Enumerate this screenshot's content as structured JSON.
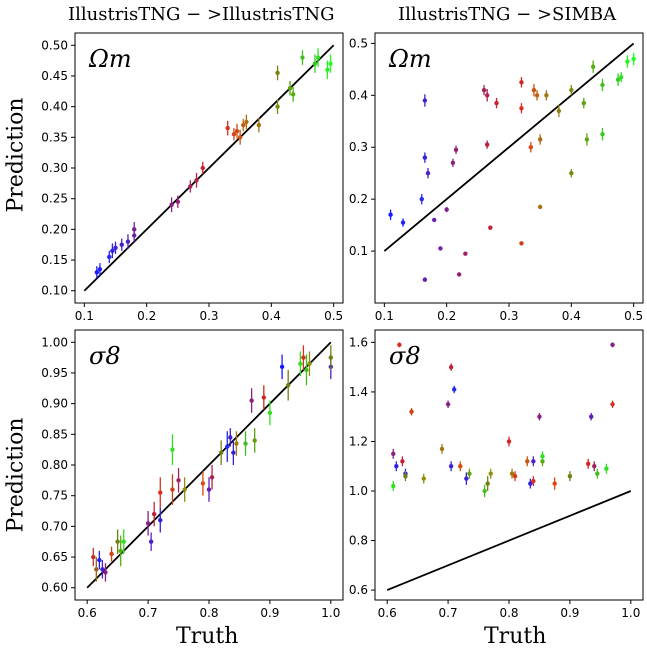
{
  "columns": [
    {
      "title": "IllustrisTNG − >IllustrisTNG"
    },
    {
      "title": "IllustrisTNG − >SIMBA"
    }
  ],
  "row_labels": {
    "ylabel": "Prediction",
    "xlabel": "Truth"
  },
  "chart_data": [
    {
      "type": "scatter",
      "title": "IllustrisTNG − >IllustrisTNG",
      "annotation": "Ωm",
      "ylabel": "Prediction",
      "xlim": [
        0.085,
        0.515
      ],
      "ylim": [
        0.08,
        0.52
      ],
      "xticks": [
        "0.1",
        "0.2",
        "0.3",
        "0.4",
        "0.5"
      ],
      "yticks": [
        "0.10",
        "0.15",
        "0.20",
        "0.25",
        "0.30",
        "0.35",
        "0.40",
        "0.45",
        "0.50"
      ],
      "identity_line": [
        [
          0.1,
          0.1
        ],
        [
          0.5,
          0.5
        ]
      ],
      "points": [
        {
          "x": 0.12,
          "y": 0.13,
          "err": 0.01,
          "color": "#1a1aff"
        },
        {
          "x": 0.125,
          "y": 0.135,
          "err": 0.01,
          "color": "#2020ff"
        },
        {
          "x": 0.14,
          "y": 0.155,
          "err": 0.01,
          "color": "#2828f0"
        },
        {
          "x": 0.145,
          "y": 0.165,
          "err": 0.012,
          "color": "#3020e0"
        },
        {
          "x": 0.15,
          "y": 0.17,
          "err": 0.01,
          "color": "#3a20d8"
        },
        {
          "x": 0.16,
          "y": 0.175,
          "err": 0.01,
          "color": "#4020d0"
        },
        {
          "x": 0.17,
          "y": 0.18,
          "err": 0.012,
          "color": "#5020c8"
        },
        {
          "x": 0.18,
          "y": 0.19,
          "err": 0.01,
          "color": "#6a20b0"
        },
        {
          "x": 0.18,
          "y": 0.2,
          "err": 0.012,
          "color": "#7a2090"
        },
        {
          "x": 0.24,
          "y": 0.24,
          "err": 0.012,
          "color": "#8a2080"
        },
        {
          "x": 0.25,
          "y": 0.245,
          "err": 0.01,
          "color": "#952070"
        },
        {
          "x": 0.27,
          "y": 0.27,
          "err": 0.01,
          "color": "#a82058"
        },
        {
          "x": 0.28,
          "y": 0.28,
          "err": 0.012,
          "color": "#b82040"
        },
        {
          "x": 0.29,
          "y": 0.3,
          "err": 0.01,
          "color": "#c82030"
        },
        {
          "x": 0.33,
          "y": 0.365,
          "err": 0.012,
          "color": "#d83020"
        },
        {
          "x": 0.34,
          "y": 0.355,
          "err": 0.01,
          "color": "#d84020"
        },
        {
          "x": 0.345,
          "y": 0.36,
          "err": 0.012,
          "color": "#d04a10"
        },
        {
          "x": 0.35,
          "y": 0.35,
          "err": 0.012,
          "color": "#c85510"
        },
        {
          "x": 0.355,
          "y": 0.37,
          "err": 0.01,
          "color": "#c06010"
        },
        {
          "x": 0.36,
          "y": 0.375,
          "err": 0.012,
          "color": "#b06a10"
        },
        {
          "x": 0.38,
          "y": 0.37,
          "err": 0.012,
          "color": "#a07010"
        },
        {
          "x": 0.41,
          "y": 0.455,
          "err": 0.012,
          "color": "#808010"
        },
        {
          "x": 0.41,
          "y": 0.4,
          "err": 0.012,
          "color": "#709010"
        },
        {
          "x": 0.43,
          "y": 0.43,
          "err": 0.012,
          "color": "#60a010"
        },
        {
          "x": 0.435,
          "y": 0.42,
          "err": 0.012,
          "color": "#50b010"
        },
        {
          "x": 0.45,
          "y": 0.48,
          "err": 0.012,
          "color": "#40c020"
        },
        {
          "x": 0.47,
          "y": 0.47,
          "err": 0.015,
          "color": "#30d020"
        },
        {
          "x": 0.475,
          "y": 0.48,
          "err": 0.015,
          "color": "#30e020"
        },
        {
          "x": 0.49,
          "y": 0.46,
          "err": 0.015,
          "color": "#28f020"
        },
        {
          "x": 0.495,
          "y": 0.47,
          "err": 0.015,
          "color": "#20ff20"
        }
      ]
    },
    {
      "type": "scatter",
      "title": "IllustrisTNG − >SIMBA",
      "annotation": "Ωm",
      "xlim": [
        0.085,
        0.515
      ],
      "ylim": [
        0.0,
        0.52
      ],
      "xticks": [
        "0.1",
        "0.2",
        "0.3",
        "0.4",
        "0.5"
      ],
      "yticks": [
        "0.1",
        "0.2",
        "0.3",
        "0.4",
        "0.5"
      ],
      "identity_line": [
        [
          0.1,
          0.1
        ],
        [
          0.5,
          0.5
        ]
      ],
      "points": [
        {
          "x": 0.11,
          "y": 0.17,
          "err": 0.01,
          "color": "#1a1aff"
        },
        {
          "x": 0.13,
          "y": 0.155,
          "err": 0.008,
          "color": "#2020ff"
        },
        {
          "x": 0.16,
          "y": 0.2,
          "err": 0.01,
          "color": "#2828f0"
        },
        {
          "x": 0.165,
          "y": 0.28,
          "err": 0.01,
          "color": "#3020e0"
        },
        {
          "x": 0.165,
          "y": 0.39,
          "err": 0.012,
          "color": "#4020d0"
        },
        {
          "x": 0.17,
          "y": 0.25,
          "err": 0.01,
          "color": "#5020c8"
        },
        {
          "x": 0.165,
          "y": 0.045,
          "err": 0.002,
          "color": "#6020b8"
        },
        {
          "x": 0.18,
          "y": 0.16,
          "err": 0.003,
          "color": "#6a20b0"
        },
        {
          "x": 0.19,
          "y": 0.105,
          "err": 0.003,
          "color": "#7020a8"
        },
        {
          "x": 0.2,
          "y": 0.18,
          "err": 0.005,
          "color": "#7a2090"
        },
        {
          "x": 0.21,
          "y": 0.27,
          "err": 0.008,
          "color": "#8a2080"
        },
        {
          "x": 0.215,
          "y": 0.295,
          "err": 0.008,
          "color": "#902078"
        },
        {
          "x": 0.22,
          "y": 0.055,
          "err": 0.003,
          "color": "#952070"
        },
        {
          "x": 0.23,
          "y": 0.095,
          "err": 0.003,
          "color": "#a02060"
        },
        {
          "x": 0.26,
          "y": 0.41,
          "err": 0.01,
          "color": "#a82058"
        },
        {
          "x": 0.265,
          "y": 0.4,
          "err": 0.012,
          "color": "#b02050"
        },
        {
          "x": 0.265,
          "y": 0.305,
          "err": 0.008,
          "color": "#b82040"
        },
        {
          "x": 0.27,
          "y": 0.145,
          "err": 0.004,
          "color": "#c02038"
        },
        {
          "x": 0.28,
          "y": 0.385,
          "err": 0.01,
          "color": "#c82030"
        },
        {
          "x": 0.32,
          "y": 0.425,
          "err": 0.01,
          "color": "#d02820"
        },
        {
          "x": 0.32,
          "y": 0.375,
          "err": 0.01,
          "color": "#d83020"
        },
        {
          "x": 0.32,
          "y": 0.115,
          "err": 0.003,
          "color": "#d04010"
        },
        {
          "x": 0.335,
          "y": 0.3,
          "err": 0.01,
          "color": "#d84a10"
        },
        {
          "x": 0.34,
          "y": 0.41,
          "err": 0.012,
          "color": "#c85510"
        },
        {
          "x": 0.345,
          "y": 0.4,
          "err": 0.01,
          "color": "#c06010"
        },
        {
          "x": 0.35,
          "y": 0.315,
          "err": 0.01,
          "color": "#b06a10"
        },
        {
          "x": 0.35,
          "y": 0.185,
          "err": 0.004,
          "color": "#a87010"
        },
        {
          "x": 0.36,
          "y": 0.4,
          "err": 0.01,
          "color": "#a07810"
        },
        {
          "x": 0.38,
          "y": 0.37,
          "err": 0.012,
          "color": "#908010"
        },
        {
          "x": 0.4,
          "y": 0.41,
          "err": 0.01,
          "color": "#808a10"
        },
        {
          "x": 0.4,
          "y": 0.25,
          "err": 0.008,
          "color": "#709010"
        },
        {
          "x": 0.42,
          "y": 0.385,
          "err": 0.01,
          "color": "#60a010"
        },
        {
          "x": 0.425,
          "y": 0.315,
          "err": 0.012,
          "color": "#58a818"
        },
        {
          "x": 0.435,
          "y": 0.455,
          "err": 0.012,
          "color": "#50b010"
        },
        {
          "x": 0.45,
          "y": 0.42,
          "err": 0.012,
          "color": "#40c020"
        },
        {
          "x": 0.45,
          "y": 0.325,
          "err": 0.012,
          "color": "#38c820"
        },
        {
          "x": 0.475,
          "y": 0.43,
          "err": 0.012,
          "color": "#30d020"
        },
        {
          "x": 0.48,
          "y": 0.435,
          "err": 0.01,
          "color": "#30e020"
        },
        {
          "x": 0.49,
          "y": 0.465,
          "err": 0.012,
          "color": "#28f020"
        },
        {
          "x": 0.5,
          "y": 0.47,
          "err": 0.012,
          "color": "#20ff20"
        }
      ]
    },
    {
      "type": "scatter",
      "annotation": "σ8",
      "ylabel": "Prediction",
      "xlabel": "Truth",
      "xlim": [
        0.58,
        1.02
      ],
      "ylim": [
        0.58,
        1.02
      ],
      "xticks": [
        "0.6",
        "0.7",
        "0.8",
        "0.9",
        "1.0"
      ],
      "yticks": [
        "0.60",
        "0.65",
        "0.70",
        "0.75",
        "0.80",
        "0.85",
        "0.90",
        "0.95",
        "1.00"
      ],
      "identity_line": [
        [
          0.6,
          0.6
        ],
        [
          1.0,
          1.0
        ]
      ],
      "points": [
        {
          "x": 0.61,
          "y": 0.65,
          "err": 0.015,
          "color": "#c03020"
        },
        {
          "x": 0.615,
          "y": 0.63,
          "err": 0.02,
          "color": "#a06010"
        },
        {
          "x": 0.62,
          "y": 0.645,
          "err": 0.015,
          "color": "#2020ff"
        },
        {
          "x": 0.625,
          "y": 0.63,
          "err": 0.015,
          "color": "#4020d0"
        },
        {
          "x": 0.63,
          "y": 0.625,
          "err": 0.015,
          "color": "#8a2080"
        },
        {
          "x": 0.64,
          "y": 0.655,
          "err": 0.012,
          "color": "#d04010"
        },
        {
          "x": 0.65,
          "y": 0.675,
          "err": 0.02,
          "color": "#708010"
        },
        {
          "x": 0.655,
          "y": 0.66,
          "err": 0.025,
          "color": "#50b010"
        },
        {
          "x": 0.66,
          "y": 0.675,
          "err": 0.02,
          "color": "#30e020"
        },
        {
          "x": 0.7,
          "y": 0.705,
          "err": 0.02,
          "color": "#8a2080"
        },
        {
          "x": 0.705,
          "y": 0.675,
          "err": 0.015,
          "color": "#5020c8"
        },
        {
          "x": 0.71,
          "y": 0.72,
          "err": 0.02,
          "color": "#c02038"
        },
        {
          "x": 0.72,
          "y": 0.755,
          "err": 0.025,
          "color": "#d83020"
        },
        {
          "x": 0.72,
          "y": 0.71,
          "err": 0.02,
          "color": "#3020e0"
        },
        {
          "x": 0.74,
          "y": 0.825,
          "err": 0.025,
          "color": "#30e020"
        },
        {
          "x": 0.74,
          "y": 0.76,
          "err": 0.025,
          "color": "#d04010"
        },
        {
          "x": 0.75,
          "y": 0.775,
          "err": 0.02,
          "color": "#a02060"
        },
        {
          "x": 0.76,
          "y": 0.76,
          "err": 0.02,
          "color": "#909010"
        },
        {
          "x": 0.79,
          "y": 0.77,
          "err": 0.02,
          "color": "#d84a10"
        },
        {
          "x": 0.8,
          "y": 0.76,
          "err": 0.02,
          "color": "#6020b8"
        },
        {
          "x": 0.805,
          "y": 0.78,
          "err": 0.02,
          "color": "#b02050"
        },
        {
          "x": 0.82,
          "y": 0.82,
          "err": 0.02,
          "color": "#708010"
        },
        {
          "x": 0.83,
          "y": 0.83,
          "err": 0.025,
          "color": "#2828f0"
        },
        {
          "x": 0.835,
          "y": 0.845,
          "err": 0.015,
          "color": "#4020d0"
        },
        {
          "x": 0.84,
          "y": 0.82,
          "err": 0.02,
          "color": "#3a20d8"
        },
        {
          "x": 0.845,
          "y": 0.835,
          "err": 0.02,
          "color": "#a07810"
        },
        {
          "x": 0.86,
          "y": 0.835,
          "err": 0.02,
          "color": "#40c020"
        },
        {
          "x": 0.87,
          "y": 0.905,
          "err": 0.02,
          "color": "#8a2080"
        },
        {
          "x": 0.875,
          "y": 0.84,
          "err": 0.02,
          "color": "#60a010"
        },
        {
          "x": 0.89,
          "y": 0.91,
          "err": 0.02,
          "color": "#d02820"
        },
        {
          "x": 0.9,
          "y": 0.885,
          "err": 0.02,
          "color": "#30e020"
        },
        {
          "x": 0.92,
          "y": 0.96,
          "err": 0.02,
          "color": "#1a1aff"
        },
        {
          "x": 0.93,
          "y": 0.93,
          "err": 0.025,
          "color": "#708010"
        },
        {
          "x": 0.95,
          "y": 0.965,
          "err": 0.02,
          "color": "#30e020"
        },
        {
          "x": 0.955,
          "y": 0.975,
          "err": 0.02,
          "color": "#d83020"
        },
        {
          "x": 0.96,
          "y": 0.955,
          "err": 0.025,
          "color": "#40c020"
        },
        {
          "x": 0.965,
          "y": 0.965,
          "err": 0.02,
          "color": "#909010"
        },
        {
          "x": 1.0,
          "y": 0.96,
          "err": 0.02,
          "color": "#5020c8"
        },
        {
          "x": 1.0,
          "y": 0.975,
          "err": 0.02,
          "color": "#708010"
        }
      ]
    },
    {
      "type": "scatter",
      "annotation": "σ8",
      "xlabel": "Truth",
      "xlim": [
        0.58,
        1.02
      ],
      "ylim": [
        0.56,
        1.65
      ],
      "xticks": [
        "0.6",
        "0.7",
        "0.8",
        "0.9",
        "1.0"
      ],
      "yticks": [
        "0.6",
        "0.8",
        "1.0",
        "1.2",
        "1.4",
        "1.6"
      ],
      "identity_line": [
        [
          0.6,
          0.6
        ],
        [
          1.0,
          1.0
        ]
      ],
      "points": [
        {
          "x": 0.61,
          "y": 1.02,
          "err": 0.02,
          "color": "#30e020"
        },
        {
          "x": 0.61,
          "y": 1.15,
          "err": 0.02,
          "color": "#8a2080"
        },
        {
          "x": 0.615,
          "y": 1.1,
          "err": 0.02,
          "color": "#3020e0"
        },
        {
          "x": 0.62,
          "y": 1.59,
          "err": 0.01,
          "color": "#d83020"
        },
        {
          "x": 0.625,
          "y": 1.12,
          "err": 0.02,
          "color": "#c02038"
        },
        {
          "x": 0.63,
          "y": 1.07,
          "err": 0.02,
          "color": "#2828f0"
        },
        {
          "x": 0.63,
          "y": 1.06,
          "err": 0.02,
          "color": "#708010"
        },
        {
          "x": 0.64,
          "y": 1.32,
          "err": 0.015,
          "color": "#d04010"
        },
        {
          "x": 0.66,
          "y": 1.05,
          "err": 0.02,
          "color": "#909010"
        },
        {
          "x": 0.69,
          "y": 1.17,
          "err": 0.02,
          "color": "#a07810"
        },
        {
          "x": 0.7,
          "y": 1.35,
          "err": 0.015,
          "color": "#8a2080"
        },
        {
          "x": 0.705,
          "y": 1.5,
          "err": 0.015,
          "color": "#c02038"
        },
        {
          "x": 0.705,
          "y": 1.1,
          "err": 0.02,
          "color": "#4020d0"
        },
        {
          "x": 0.71,
          "y": 1.41,
          "err": 0.015,
          "color": "#2828f0"
        },
        {
          "x": 0.72,
          "y": 1.1,
          "err": 0.02,
          "color": "#d84a10"
        },
        {
          "x": 0.73,
          "y": 1.05,
          "err": 0.025,
          "color": "#3a20d8"
        },
        {
          "x": 0.735,
          "y": 1.07,
          "err": 0.02,
          "color": "#60a010"
        },
        {
          "x": 0.76,
          "y": 1.0,
          "err": 0.025,
          "color": "#40c020"
        },
        {
          "x": 0.765,
          "y": 1.03,
          "err": 0.03,
          "color": "#708010"
        },
        {
          "x": 0.77,
          "y": 1.07,
          "err": 0.02,
          "color": "#909010"
        },
        {
          "x": 0.8,
          "y": 1.2,
          "err": 0.02,
          "color": "#d02820"
        },
        {
          "x": 0.805,
          "y": 1.07,
          "err": 0.02,
          "color": "#a07810"
        },
        {
          "x": 0.81,
          "y": 1.06,
          "err": 0.02,
          "color": "#d04010"
        },
        {
          "x": 0.83,
          "y": 1.12,
          "err": 0.02,
          "color": "#c85510"
        },
        {
          "x": 0.835,
          "y": 1.03,
          "err": 0.02,
          "color": "#3020e0"
        },
        {
          "x": 0.84,
          "y": 1.04,
          "err": 0.02,
          "color": "#d83020"
        },
        {
          "x": 0.84,
          "y": 1.12,
          "err": 0.02,
          "color": "#5020c8"
        },
        {
          "x": 0.85,
          "y": 1.3,
          "err": 0.015,
          "color": "#8a2080"
        },
        {
          "x": 0.855,
          "y": 1.12,
          "err": 0.02,
          "color": "#60a010"
        },
        {
          "x": 0.855,
          "y": 1.14,
          "err": 0.02,
          "color": "#30e020"
        },
        {
          "x": 0.875,
          "y": 1.03,
          "err": 0.025,
          "color": "#d84a10"
        },
        {
          "x": 0.9,
          "y": 1.06,
          "err": 0.02,
          "color": "#708010"
        },
        {
          "x": 0.93,
          "y": 1.11,
          "err": 0.02,
          "color": "#d02820"
        },
        {
          "x": 0.935,
          "y": 1.3,
          "err": 0.015,
          "color": "#6020b8"
        },
        {
          "x": 0.94,
          "y": 1.1,
          "err": 0.02,
          "color": "#a02060"
        },
        {
          "x": 0.945,
          "y": 1.07,
          "err": 0.02,
          "color": "#40c020"
        },
        {
          "x": 0.96,
          "y": 1.09,
          "err": 0.02,
          "color": "#30e020"
        },
        {
          "x": 0.97,
          "y": 1.59,
          "err": 0.01,
          "color": "#8a2080"
        },
        {
          "x": 0.97,
          "y": 1.35,
          "err": 0.015,
          "color": "#d83020"
        }
      ]
    }
  ]
}
